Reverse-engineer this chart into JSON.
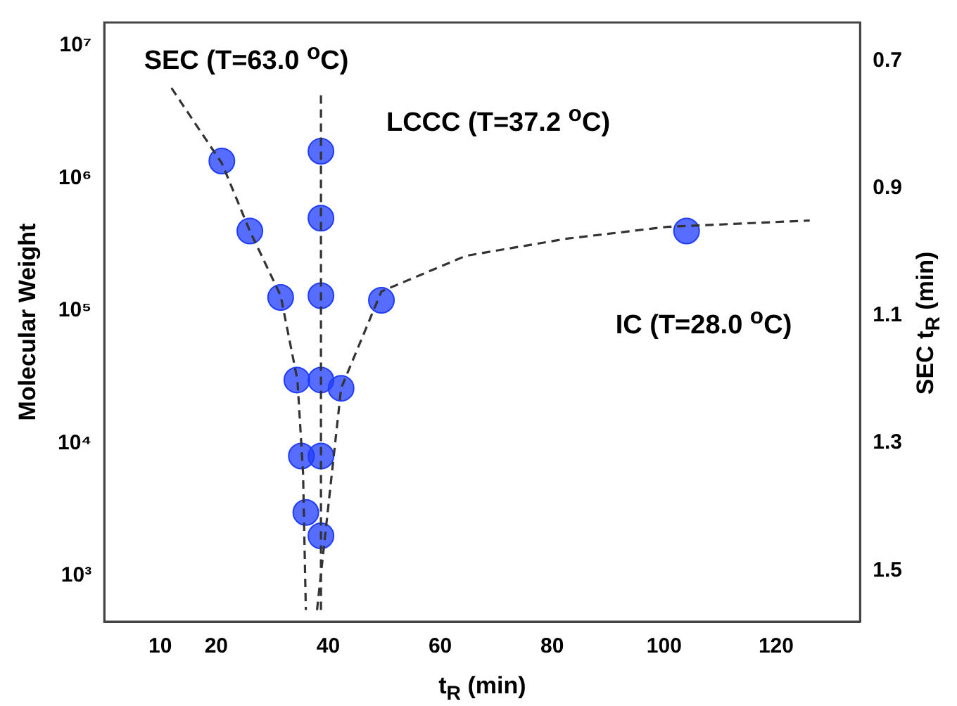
{
  "chart_data": {
    "type": "scatter",
    "xlabel": "t$_{R}$ (min)",
    "ylabel": "Molecular Weight",
    "y2label": "SEC t$_{R}$ (min)",
    "xlim": [
      0,
      135
    ],
    "xticks": [
      10,
      20,
      40,
      60,
      80,
      100,
      120
    ],
    "ylim": [
      450,
      15000000
    ],
    "yticks": [
      {
        "value": 1000,
        "label": "10³"
      },
      {
        "value": 10000,
        "label": "10⁴"
      },
      {
        "value": 100000,
        "label": "10⁵"
      },
      {
        "value": 1000000,
        "label": "10⁶"
      },
      {
        "value": 10000000,
        "label": "10⁷"
      }
    ],
    "y2lim": [
      1.58,
      0.64
    ],
    "y2ticks": [
      0.7,
      0.9,
      1.1,
      1.3,
      1.5
    ],
    "log": "y",
    "grid": false,
    "legend": false,
    "series": [
      {
        "marker": "circle",
        "color": "#1f3cff",
        "x": [
          21,
          26,
          31.5,
          34.4,
          35.2,
          36,
          38.7,
          38.7,
          38.7,
          38.7,
          38.7,
          38.7,
          42.3,
          49.5,
          104
        ],
        "values": [
          1350000,
          400000,
          126000,
          30000,
          8000,
          3000,
          1600000,
          500000,
          130000,
          30000,
          8000,
          2000,
          26000,
          120000,
          400000
        ]
      },
      {
        "type": "line",
        "marker": "none",
        "line_style": "dashed",
        "color": "#333333",
        "x": [
          12,
          21,
          26,
          31.5,
          34.5,
          35.5,
          36
        ],
        "values": [
          4800000,
          1300000,
          400000,
          130000,
          30000,
          6000,
          550
        ]
      },
      {
        "type": "line",
        "marker": "none",
        "line_style": "dashed",
        "color": "#333333",
        "x": [
          38.7,
          38.7
        ],
        "values": [
          550,
          4500000
        ]
      },
      {
        "type": "line",
        "marker": "none",
        "line_style": "dashed",
        "color": "#333333",
        "x": [
          38,
          42.3,
          49.5,
          64.6,
          82.6,
          100.5,
          126
        ],
        "values": [
          550,
          26000,
          140000,
          260000,
          350000,
          430000,
          480000
        ]
      }
    ],
    "annotations": [
      "SEC (T=63.0 $^{o}$C)",
      "LCCC (T=37.2 $^{o}$C)",
      "IC (T=28.0 $^{o}$C)"
    ]
  }
}
